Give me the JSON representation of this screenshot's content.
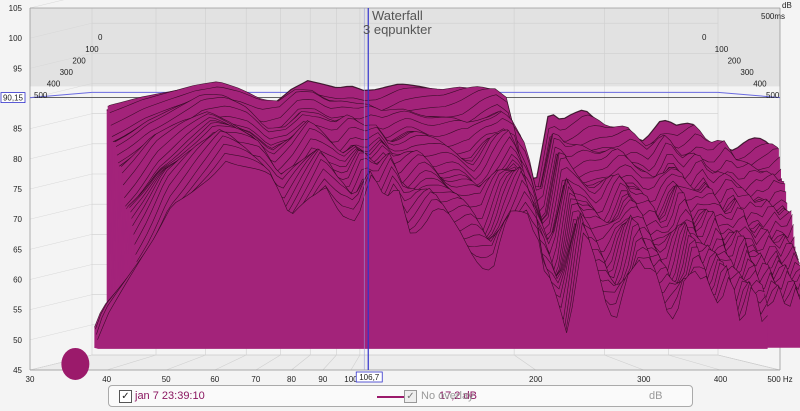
{
  "chart_data": {
    "type": "waterfall",
    "title": "Waterfall",
    "subtitle": "3 eqpunkter",
    "y_unit": "dB",
    "x_unit": "Hz",
    "time_unit": "500ms",
    "cursor_x_label": "106,7",
    "cursor_y_label": "90,15",
    "x_ticks": [
      "30",
      "40",
      "50",
      "60",
      "70",
      "80",
      "90",
      "100",
      "200",
      "300",
      "400",
      "500 Hz"
    ],
    "x_tick_values": [
      30,
      40,
      50,
      60,
      70,
      80,
      90,
      100,
      200,
      300,
      400,
      500
    ],
    "y_ticks": [
      "105",
      "100",
      "95",
      "90",
      "85",
      "80",
      "75",
      "70",
      "65",
      "60",
      "55",
      "50",
      "45"
    ],
    "y_tick_values": [
      105,
      100,
      95,
      90,
      85,
      80,
      75,
      70,
      65,
      60,
      55,
      50,
      45
    ],
    "time_ticks": [
      "0",
      "100",
      "200",
      "300",
      "400",
      "500"
    ],
    "xlim": [
      30,
      500
    ],
    "ylim": [
      45,
      105
    ],
    "cursor_freq": 106.7,
    "cursor_level": 90.15,
    "surface_color": "#9b1a6b",
    "fill_color": "#a3237a",
    "slice_line_color": "#2a0a1c",
    "series": [
      {
        "name": "jan 7 23:39:10",
        "value_label": "17,2 dB",
        "checked": true,
        "color": "#9b1a6b"
      },
      {
        "name": "No overlay",
        "value_label": "dB",
        "checked": true,
        "color": "#999999"
      }
    ],
    "front_slice": {
      "freq": [
        34,
        35,
        38,
        40,
        42,
        45,
        50,
        55,
        60,
        65,
        70,
        75,
        80,
        85,
        90,
        95,
        100,
        105,
        110,
        120,
        130,
        140,
        150,
        160,
        170,
        180,
        190,
        200,
        210,
        220,
        240,
        260,
        280,
        300,
        320,
        340,
        360,
        380,
        400,
        420
      ],
      "level": [
        48,
        52,
        58,
        62,
        66,
        73,
        78,
        82,
        79,
        76,
        69,
        74,
        78,
        73,
        70,
        76,
        72,
        76,
        70,
        72,
        68,
        66,
        62,
        70,
        74,
        66,
        60,
        56,
        68,
        62,
        54,
        66,
        58,
        55,
        64,
        57,
        60,
        55,
        58,
        54
      ]
    },
    "back_slice": {
      "freq": [
        40,
        45,
        50,
        55,
        60,
        65,
        70,
        75,
        80,
        85,
        90,
        95,
        100,
        105,
        110,
        120,
        130,
        140,
        150,
        160,
        170,
        180,
        190,
        200,
        210,
        220,
        240,
        260,
        280,
        300,
        320,
        340,
        360,
        380,
        400,
        420
      ],
      "level": [
        89,
        90,
        91,
        92,
        93,
        92,
        91,
        90,
        92,
        93,
        92,
        91,
        91,
        90,
        90,
        91,
        91,
        91,
        92,
        92,
        92,
        91,
        87,
        76,
        87,
        85,
        87,
        85,
        86,
        84,
        86,
        84,
        85,
        83,
        84,
        82
      ]
    }
  },
  "legend": {
    "series1_name": "jan 7 23:39:10",
    "series1_value": "17,2 dB",
    "series2_name": "No overlay",
    "series2_value": "dB",
    "check": "✓"
  }
}
